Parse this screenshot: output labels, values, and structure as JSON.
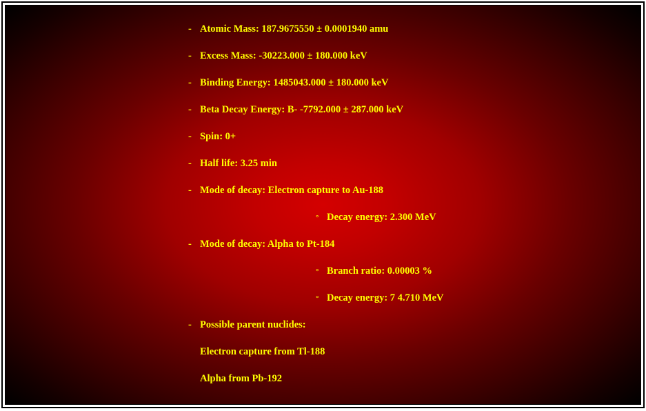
{
  "colors": {
    "text": "#ffff00",
    "bg_center": "#d40000",
    "bg_edge": "#000000",
    "frame": "#000000",
    "page": "#ffffff"
  },
  "typography": {
    "font_family": "Georgia, Times New Roman, serif",
    "font_size_pt": 11,
    "font_weight": "bold"
  },
  "bullets": {
    "dash": "-",
    "sub": "°"
  },
  "items": {
    "atomic_mass": "Atomic Mass: 187.9675550 ± 0.0001940 amu",
    "excess_mass": "Excess Mass: -30223.000 ± 180.000 keV",
    "binding_energy": "Binding Energy: 1485043.000 ± 180.000 keV",
    "beta_decay": "Beta Decay Energy: B- -7792.000 ± 287.000 keV",
    "spin": "Spin: 0+",
    "half_life": "Half life: 3.25 min",
    "mode_ec": "Mode of decay: Electron capture to Au-188",
    "mode_ec_sub1": "Decay energy: 2.300 MeV",
    "mode_alpha": "Mode of decay: Alpha to Pt-184",
    "mode_alpha_sub1": "Branch ratio: 0.00003 %",
    "mode_alpha_sub2": "Decay energy: 7 4.710 MeV",
    "parents_label": "Possible parent nuclides:",
    "parent1": "Electron capture from Tl-188",
    "parent2": "Alpha from Pb-192"
  }
}
